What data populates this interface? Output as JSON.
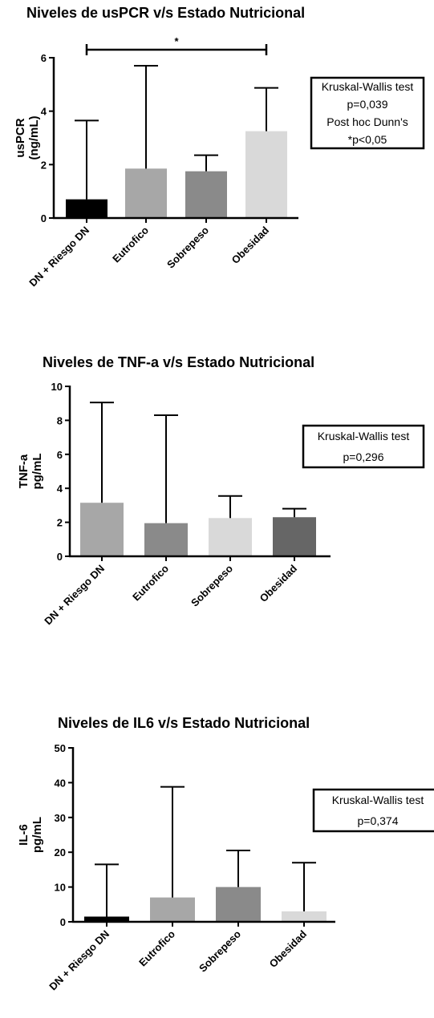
{
  "chart_data": [
    {
      "type": "bar",
      "title": "Niveles de usPCR v/s Estado Nutricional",
      "ylabel": [
        "usPCR",
        "(ng/mL)"
      ],
      "xlabel": "",
      "ylim": [
        0,
        6
      ],
      "yticks": [
        0,
        2,
        4,
        6
      ],
      "categories": [
        "DN + Riesgo DN",
        "Eutrofico",
        "Sobrepeso",
        "Obesidad"
      ],
      "values": [
        0.7,
        1.85,
        1.75,
        3.25
      ],
      "error_upper": [
        3.65,
        5.7,
        2.35,
        4.87
      ],
      "colors": [
        "#000000",
        "#a7a7a7",
        "#8a8a8a",
        "#d9d9d9"
      ],
      "significance": {
        "from": 0,
        "to": 3,
        "label": "*"
      },
      "stats_box": [
        "Kruskal-Wallis test",
        "p=0,039",
        "Post hoc Dunn's",
        "*p<0,05"
      ]
    },
    {
      "type": "bar",
      "title": "Niveles de TNF-a v/s Estado Nutricional",
      "ylabel": [
        "TNF-a",
        "pg/mL"
      ],
      "xlabel": "",
      "ylim": [
        0,
        10
      ],
      "yticks": [
        0,
        2,
        4,
        6,
        8,
        10
      ],
      "categories": [
        "DN + Riesgo DN",
        "Eutrofico",
        "Sobrepeso",
        "Obesidad"
      ],
      "values": [
        3.15,
        1.95,
        2.25,
        2.3
      ],
      "error_upper": [
        9.05,
        8.3,
        3.55,
        2.8
      ],
      "colors": [
        "#a7a7a7",
        "#8a8a8a",
        "#d9d9d9",
        "#666666"
      ],
      "stats_box": [
        "Kruskal-Wallis test",
        "p=0,296"
      ]
    },
    {
      "type": "bar",
      "title": "Niveles de IL6 v/s Estado Nutricional",
      "ylabel": [
        "IL-6",
        "pg/mL"
      ],
      "xlabel": "",
      "ylim": [
        0,
        50
      ],
      "yticks": [
        0,
        10,
        20,
        30,
        40,
        50
      ],
      "categories": [
        "DN + Riesgo DN",
        "Eutrofico",
        "Sobrepeso",
        "Obesidad"
      ],
      "values": [
        1.5,
        7.0,
        10.0,
        3.0
      ],
      "error_upper": [
        16.5,
        38.8,
        20.5,
        17.0
      ],
      "colors": [
        "#000000",
        "#a7a7a7",
        "#8a8a8a",
        "#d9d9d9"
      ],
      "stats_box": [
        "Kruskal-Wallis test",
        "p=0,374"
      ]
    }
  ]
}
